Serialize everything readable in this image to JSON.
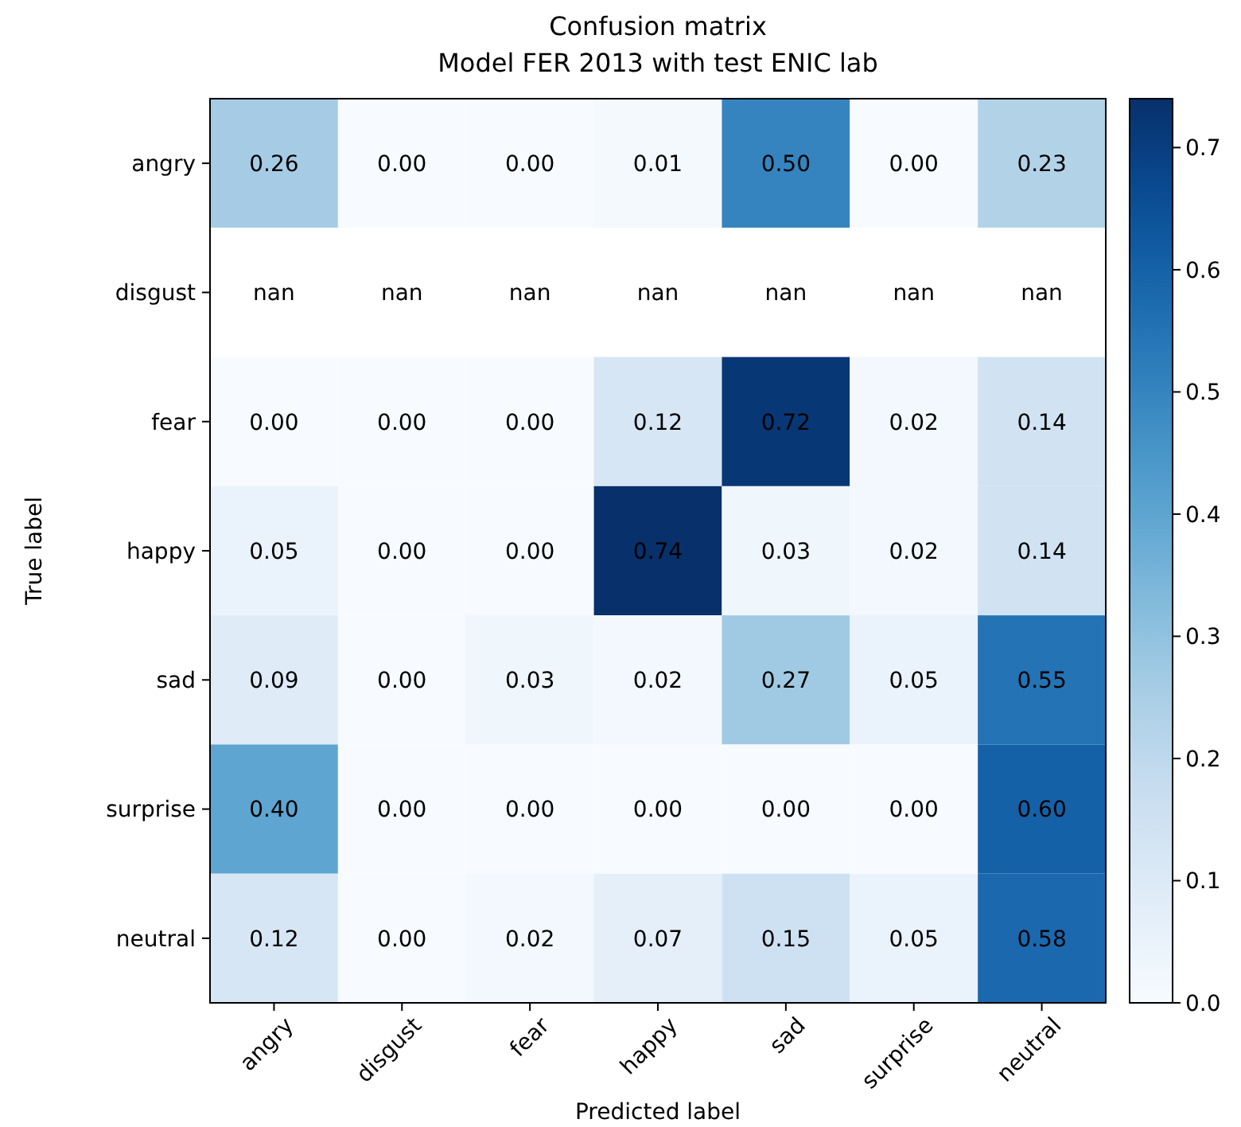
{
  "chart_data": {
    "type": "heatmap",
    "title": "Confusion matrix",
    "subtitle": "Model FER 2013 with test ENIC lab",
    "xlabel": "Predicted label",
    "ylabel": "True label",
    "categories": [
      "angry",
      "disgust",
      "fear",
      "happy",
      "sad",
      "surprise",
      "neutral"
    ],
    "y_categories": [
      "angry",
      "disgust",
      "fear",
      "happy",
      "sad",
      "surprise",
      "neutral"
    ],
    "cells": [
      [
        0.26,
        0.0,
        0.0,
        0.01,
        0.5,
        0.0,
        0.23
      ],
      [
        null,
        null,
        null,
        null,
        null,
        null,
        null
      ],
      [
        0.0,
        0.0,
        0.0,
        0.12,
        0.72,
        0.02,
        0.14
      ],
      [
        0.05,
        0.0,
        0.0,
        0.74,
        0.03,
        0.02,
        0.14
      ],
      [
        0.09,
        0.0,
        0.03,
        0.02,
        0.27,
        0.05,
        0.55
      ],
      [
        0.4,
        0.0,
        0.0,
        0.0,
        0.0,
        0.0,
        0.6
      ],
      [
        0.12,
        0.0,
        0.02,
        0.07,
        0.15,
        0.05,
        0.58
      ]
    ],
    "cell_labels": [
      [
        "0.26",
        "0.00",
        "0.00",
        "0.01",
        "0.50",
        "0.00",
        "0.23"
      ],
      [
        "nan",
        "nan",
        "nan",
        "nan",
        "nan",
        "nan",
        "nan"
      ],
      [
        "0.00",
        "0.00",
        "0.00",
        "0.12",
        "0.72",
        "0.02",
        "0.14"
      ],
      [
        "0.05",
        "0.00",
        "0.00",
        "0.74",
        "0.03",
        "0.02",
        "0.14"
      ],
      [
        "0.09",
        "0.00",
        "0.03",
        "0.02",
        "0.27",
        "0.05",
        "0.55"
      ],
      [
        "0.40",
        "0.00",
        "0.00",
        "0.00",
        "0.00",
        "0.00",
        "0.60"
      ],
      [
        "0.12",
        "0.00",
        "0.02",
        "0.07",
        "0.15",
        "0.05",
        "0.58"
      ]
    ],
    "clim": [
      0,
      0.74
    ],
    "cticks": [
      {
        "value": 0,
        "label": "0.0"
      },
      0.1,
      0.2,
      0.3,
      0.4,
      0.5,
      0.6,
      0.7
    ]
  }
}
